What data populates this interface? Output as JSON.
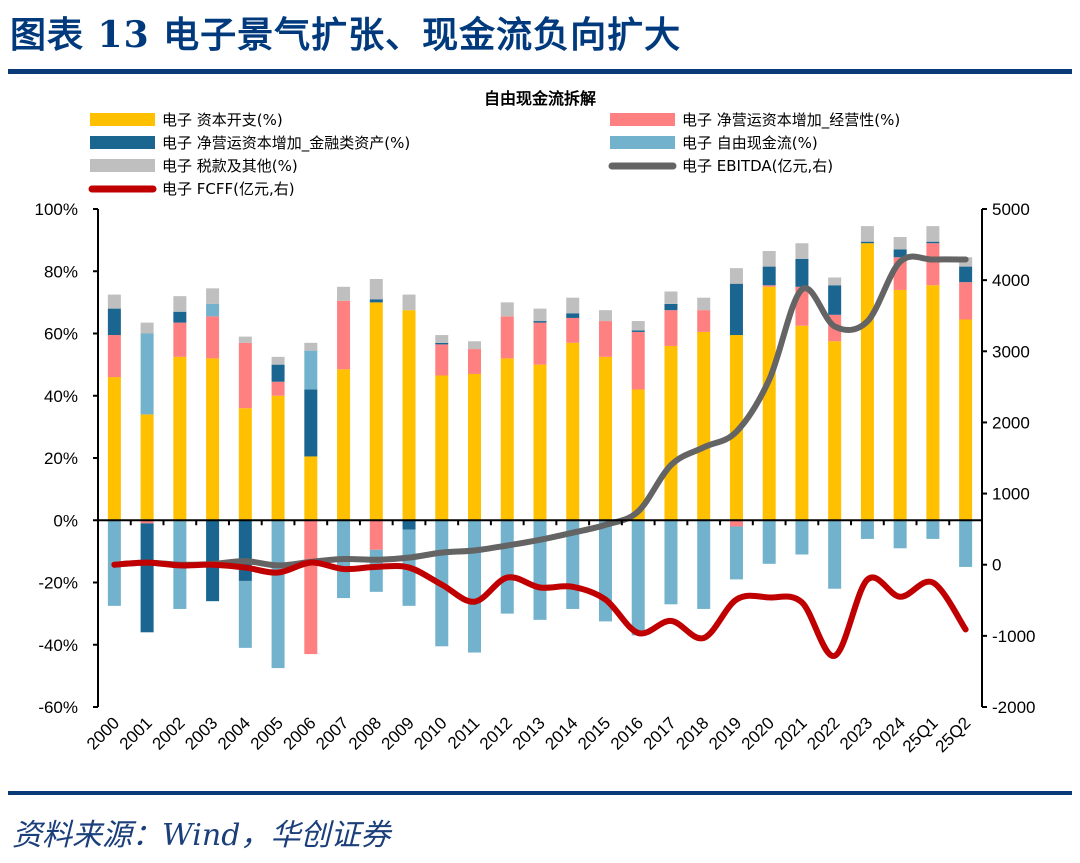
{
  "figure": {
    "title": "图表 13  电子景气扩张、现金流负向扩大",
    "source": "资料来源：Wind，华创证券"
  },
  "colors": {
    "capex": "#FFC000",
    "nwc_operating": "#FF8080",
    "nwc_financial": "#1B6690",
    "fcf": "#72B2CC",
    "tax_other": "#BFBFBF",
    "ebitda": "#646464",
    "fcff": "#C00000",
    "rule": "#0A3A78"
  },
  "chart_data": {
    "type": "bar",
    "title": "自由现金流拆解",
    "xlabel": "",
    "ylabel": "",
    "ylim": [
      -60,
      100
    ],
    "y_ticks": [
      "100%",
      "80%",
      "60%",
      "40%",
      "20%",
      "0%",
      "-20%",
      "-40%",
      "-60%"
    ],
    "y_tick_values": [
      100,
      80,
      60,
      40,
      20,
      0,
      -20,
      -40,
      -60
    ],
    "y2lim": [
      -2000,
      5000
    ],
    "y2_ticks": [
      "5000",
      "4000",
      "3000",
      "2000",
      "1000",
      "0",
      "-1000",
      "-2000"
    ],
    "y2_tick_values": [
      5000,
      4000,
      3000,
      2000,
      1000,
      0,
      -1000,
      -2000
    ],
    "grid": false,
    "legend_position": "top",
    "categories": [
      "2000",
      "2001",
      "2002",
      "2003",
      "2004",
      "2005",
      "2006",
      "2007",
      "2008",
      "2009",
      "2010",
      "2011",
      "2012",
      "2013",
      "2014",
      "2015",
      "2016",
      "2017",
      "2018",
      "2019",
      "2020",
      "2021",
      "2022",
      "2023",
      "2024",
      "25Q1",
      "25Q2"
    ],
    "series": [
      {
        "name": "电子 资本开支(%)",
        "key": "capex",
        "kind": "bar",
        "axis": "left",
        "values": [
          46,
          34,
          52.5,
          52,
          36,
          40,
          20.5,
          48.5,
          70,
          67.5,
          46.5,
          47,
          52,
          50,
          57,
          52.5,
          42,
          56,
          60.5,
          59.5,
          75,
          62.5,
          57.5,
          89,
          74,
          75.5,
          64.5
        ]
      },
      {
        "name": "电子 净营运资本增加_经营性(%)",
        "key": "nwc_operating",
        "kind": "bar",
        "axis": "left",
        "values": [
          13.5,
          -1,
          11,
          13.5,
          21,
          4.5,
          -43,
          22,
          -9.5,
          0,
          10,
          8,
          13.5,
          13.5,
          8,
          11.5,
          18.5,
          11.5,
          7,
          -2,
          0.5,
          12.5,
          8.5,
          0,
          10.5,
          13.5,
          12
        ]
      },
      {
        "name": "电子 净营运资本增加_金融类资产(%)",
        "key": "nwc_financial",
        "kind": "bar",
        "axis": "left",
        "values": [
          8.5,
          -35,
          3.5,
          -26,
          -19.5,
          5.5,
          21.5,
          0,
          1,
          -3,
          0.5,
          0,
          0,
          0.5,
          1.5,
          0,
          0.5,
          2,
          0,
          16.5,
          6,
          9,
          9.5,
          0.5,
          2.5,
          0.5,
          5
        ]
      },
      {
        "name": "电子 自由现金流(%)",
        "key": "fcf",
        "kind": "bar",
        "axis": "left",
        "values": [
          -27.5,
          26,
          -28.5,
          4,
          -21.5,
          -47.5,
          12.5,
          -25,
          -13.5,
          -24.5,
          -40.5,
          -42.5,
          -30,
          -32,
          -28.5,
          -32.5,
          -37,
          -27,
          -28.5,
          -17,
          -14,
          -11,
          -22,
          -6,
          -9,
          -6,
          -15
        ]
      },
      {
        "name": "电子 税款及其他(%)",
        "key": "tax_other",
        "kind": "bar",
        "axis": "left",
        "values": [
          4.5,
          3.5,
          5,
          5,
          2,
          2.5,
          2.5,
          4.5,
          6.5,
          5,
          2.5,
          2.5,
          4.5,
          4,
          5,
          3.5,
          3,
          4,
          4,
          5,
          5,
          5,
          2.5,
          5,
          4,
          5,
          3
        ]
      },
      {
        "name": "电子 EBITDA(亿元,右)",
        "key": "ebitda",
        "kind": "line",
        "axis": "right",
        "values": [
          0,
          30,
          0,
          10,
          50,
          -10,
          40,
          80,
          70,
          100,
          170,
          200,
          270,
          350,
          450,
          560,
          750,
          1400,
          1650,
          1870,
          2600,
          3870,
          3350,
          3420,
          4260,
          4290,
          4290
        ]
      },
      {
        "name": "电子 FCFF(亿元,右)",
        "key": "fcff",
        "kind": "line",
        "axis": "right",
        "values": [
          0,
          30,
          -10,
          0,
          -40,
          -110,
          30,
          -60,
          -30,
          -40,
          -280,
          -520,
          -180,
          -320,
          -310,
          -490,
          -960,
          -790,
          -1030,
          -490,
          -460,
          -530,
          -1280,
          -210,
          -450,
          -250,
          -910
        ]
      }
    ],
    "stack_order": [
      "capex",
      "nwc_operating",
      "nwc_financial",
      "fcf",
      "tax_other"
    ]
  },
  "legend": [
    {
      "label": "电子 资本开支(%)",
      "key": "capex",
      "kind": "bar"
    },
    {
      "label": "电子 净营运资本增加_经营性(%)",
      "key": "nwc_operating",
      "kind": "bar"
    },
    {
      "label": "电子 净营运资本增加_金融类资产(%)",
      "key": "nwc_financial",
      "kind": "bar"
    },
    {
      "label": "电子 自由现金流(%)",
      "key": "fcf",
      "kind": "bar"
    },
    {
      "label": "电子 税款及其他(%)",
      "key": "tax_other",
      "kind": "bar"
    },
    {
      "label": "电子 EBITDA(亿元,右)",
      "key": "ebitda",
      "kind": "line"
    },
    {
      "label": "电子 FCFF(亿元,右)",
      "key": "fcff",
      "kind": "line"
    }
  ]
}
